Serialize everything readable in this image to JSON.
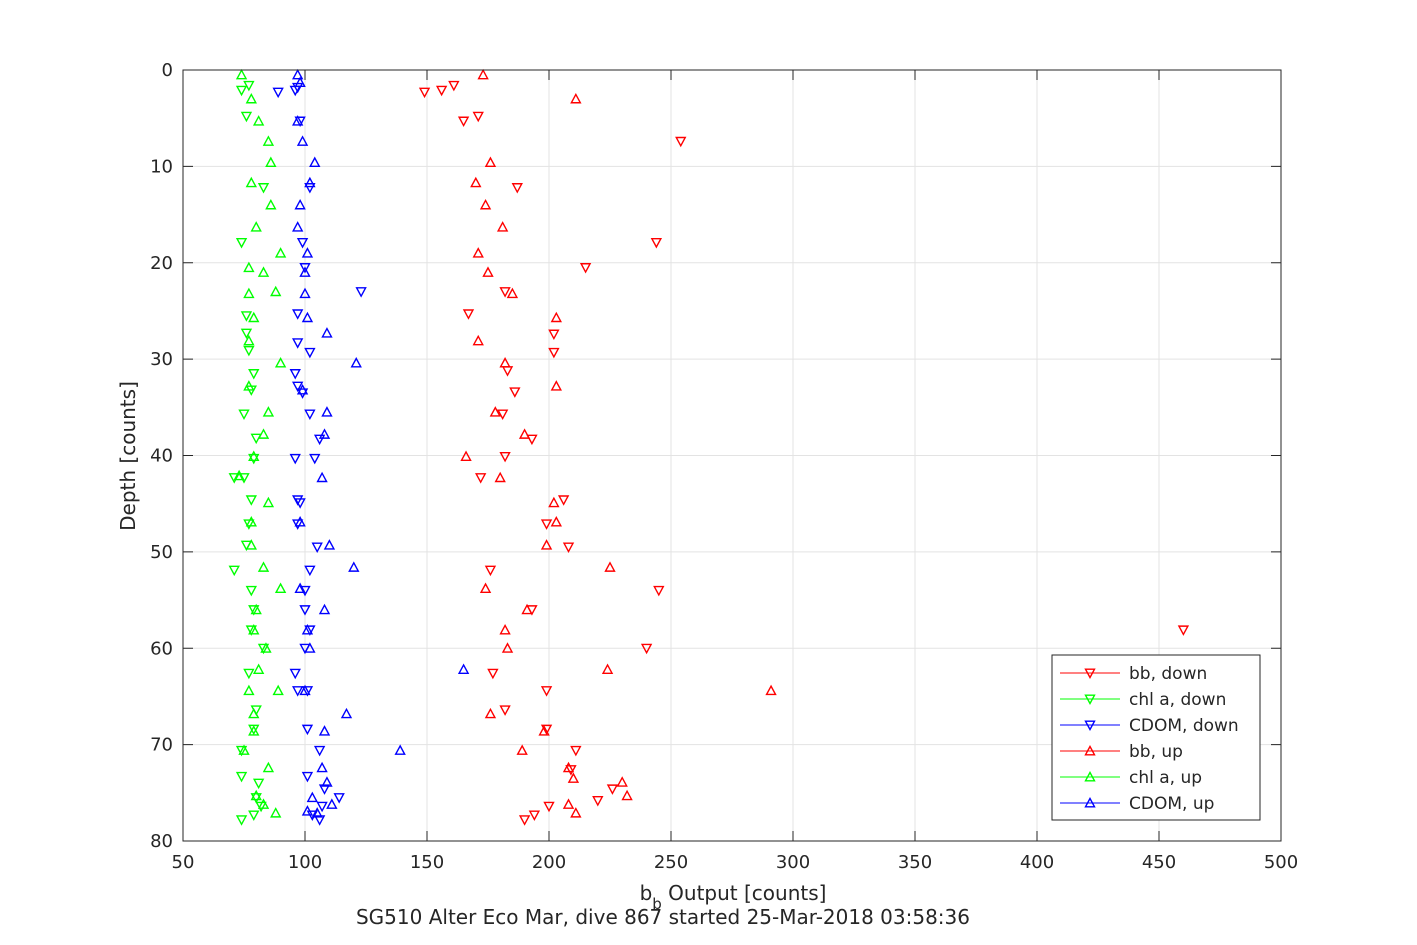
{
  "chart_data": {
    "type": "scatter",
    "title": "",
    "subtitle": "SG510 Alter Eco Mar, dive 867 started 25-Mar-2018 03:58:36",
    "xlabel": {
      "main": "b",
      "sub": "b",
      "rest": " Output [counts]"
    },
    "ylabel": "Depth [counts]",
    "xlim": [
      50,
      500
    ],
    "ylim": [
      0,
      80
    ],
    "y_reversed": true,
    "x_ticks": [
      50,
      100,
      150,
      200,
      250,
      300,
      350,
      400,
      450,
      500
    ],
    "y_ticks": [
      0,
      10,
      20,
      30,
      40,
      50,
      60,
      70,
      80
    ],
    "grid": true,
    "legend_position": "lower-right",
    "series": [
      {
        "name": "bb, down",
        "color": "#ff0000",
        "marker": "triangle-down",
        "points": [
          [
            149,
            2.3
          ],
          [
            156,
            2.1
          ],
          [
            161,
            1.6
          ],
          [
            165,
            5.3
          ],
          [
            171,
            4.8
          ],
          [
            254,
            7.4
          ],
          [
            187,
            12.2
          ],
          [
            244,
            17.9
          ],
          [
            215,
            20.5
          ],
          [
            182,
            23.0
          ],
          [
            167,
            25.3
          ],
          [
            202,
            27.4
          ],
          [
            202,
            29.3
          ],
          [
            183,
            31.2
          ],
          [
            186,
            33.4
          ],
          [
            181,
            35.7
          ],
          [
            193,
            38.3
          ],
          [
            182,
            40.1
          ],
          [
            172,
            42.3
          ],
          [
            206,
            44.6
          ],
          [
            199,
            47.1
          ],
          [
            208,
            49.5
          ],
          [
            176,
            51.9
          ],
          [
            245,
            54.0
          ],
          [
            193,
            56.0
          ],
          [
            460,
            58.1
          ],
          [
            240,
            60.0
          ],
          [
            177,
            62.6
          ],
          [
            199,
            64.4
          ],
          [
            182,
            66.4
          ],
          [
            199,
            68.4
          ],
          [
            211,
            70.6
          ],
          [
            209,
            72.6
          ],
          [
            226,
            74.6
          ],
          [
            220,
            75.8
          ],
          [
            200,
            76.4
          ],
          [
            194,
            77.3
          ],
          [
            190,
            77.8
          ]
        ]
      },
      {
        "name": "chl a, down",
        "color": "#00ff00",
        "marker": "triangle-down",
        "points": [
          [
            77,
            1.6
          ],
          [
            74,
            2.1
          ],
          [
            76,
            4.8
          ],
          [
            83,
            12.2
          ],
          [
            74,
            17.9
          ],
          [
            76,
            25.5
          ],
          [
            76,
            27.3
          ],
          [
            77,
            29.1
          ],
          [
            79,
            31.5
          ],
          [
            78,
            33.2
          ],
          [
            75,
            35.7
          ],
          [
            80,
            38.2
          ],
          [
            79,
            40.3
          ],
          [
            71,
            42.3
          ],
          [
            75,
            42.3
          ],
          [
            78,
            44.6
          ],
          [
            77,
            47.1
          ],
          [
            76,
            49.3
          ],
          [
            71,
            51.9
          ],
          [
            78,
            54.0
          ],
          [
            79,
            56.0
          ],
          [
            78,
            58.1
          ],
          [
            83,
            60.0
          ],
          [
            77,
            62.6
          ],
          [
            80,
            66.4
          ],
          [
            79,
            68.4
          ],
          [
            74,
            70.6
          ],
          [
            74,
            73.3
          ],
          [
            81,
            74.0
          ],
          [
            80,
            75.5
          ],
          [
            82,
            76.4
          ],
          [
            79,
            77.3
          ],
          [
            74,
            77.8
          ]
        ]
      },
      {
        "name": "CDOM, down",
        "color": "#0000ff",
        "marker": "triangle-down",
        "points": [
          [
            89,
            2.3
          ],
          [
            96,
            2.1
          ],
          [
            97,
            1.8
          ],
          [
            98,
            5.3
          ],
          [
            102,
            12.2
          ],
          [
            99,
            17.9
          ],
          [
            100,
            20.5
          ],
          [
            123,
            23.0
          ],
          [
            97,
            25.3
          ],
          [
            97,
            28.3
          ],
          [
            102,
            29.3
          ],
          [
            96,
            31.5
          ],
          [
            97,
            32.8
          ],
          [
            99,
            33.5
          ],
          [
            102,
            35.7
          ],
          [
            106,
            38.3
          ],
          [
            96,
            40.3
          ],
          [
            104,
            40.3
          ],
          [
            97,
            44.6
          ],
          [
            98,
            44.9
          ],
          [
            97,
            47.1
          ],
          [
            105,
            49.5
          ],
          [
            102,
            51.9
          ],
          [
            100,
            54.0
          ],
          [
            100,
            56.0
          ],
          [
            102,
            58.1
          ],
          [
            100,
            60.0
          ],
          [
            96,
            62.6
          ],
          [
            97,
            64.4
          ],
          [
            101,
            64.4
          ],
          [
            101,
            68.4
          ],
          [
            106,
            70.6
          ],
          [
            101,
            73.3
          ],
          [
            108,
            74.6
          ],
          [
            114,
            75.5
          ],
          [
            107,
            76.4
          ],
          [
            103,
            77.3
          ],
          [
            106,
            77.8
          ]
        ]
      },
      {
        "name": "bb, up",
        "color": "#ff0000",
        "marker": "triangle-up",
        "points": [
          [
            173,
            0.5
          ],
          [
            211,
            3.0
          ],
          [
            176,
            9.6
          ],
          [
            170,
            11.7
          ],
          [
            174,
            14.0
          ],
          [
            181,
            16.3
          ],
          [
            171,
            19.0
          ],
          [
            175,
            21.0
          ],
          [
            185,
            23.2
          ],
          [
            203,
            25.7
          ],
          [
            171,
            28.1
          ],
          [
            182,
            30.4
          ],
          [
            203,
            32.8
          ],
          [
            178,
            35.5
          ],
          [
            190,
            37.8
          ],
          [
            166,
            40.1
          ],
          [
            180,
            42.3
          ],
          [
            202,
            44.9
          ],
          [
            203,
            46.9
          ],
          [
            199,
            49.3
          ],
          [
            225,
            51.6
          ],
          [
            174,
            53.8
          ],
          [
            191,
            56.0
          ],
          [
            182,
            58.1
          ],
          [
            183,
            60.0
          ],
          [
            224,
            62.2
          ],
          [
            291,
            64.4
          ],
          [
            176,
            66.8
          ],
          [
            198,
            68.6
          ],
          [
            189,
            70.6
          ],
          [
            208,
            72.4
          ],
          [
            210,
            73.5
          ],
          [
            230,
            73.9
          ],
          [
            232,
            75.3
          ],
          [
            208,
            76.2
          ],
          [
            211,
            77.1
          ]
        ]
      },
      {
        "name": "chl a, up",
        "color": "#00ff00",
        "marker": "triangle-up",
        "points": [
          [
            74,
            0.5
          ],
          [
            78,
            3.0
          ],
          [
            81,
            5.3
          ],
          [
            85,
            7.4
          ],
          [
            86,
            9.6
          ],
          [
            78,
            11.7
          ],
          [
            86,
            14.0
          ],
          [
            80,
            16.3
          ],
          [
            90,
            19.0
          ],
          [
            77,
            20.5
          ],
          [
            83,
            21.0
          ],
          [
            88,
            23.0
          ],
          [
            77,
            23.2
          ],
          [
            79,
            25.7
          ],
          [
            77,
            28.1
          ],
          [
            90,
            30.4
          ],
          [
            77,
            32.8
          ],
          [
            85,
            35.5
          ],
          [
            83,
            37.8
          ],
          [
            79,
            40.1
          ],
          [
            73,
            42.1
          ],
          [
            85,
            44.9
          ],
          [
            78,
            46.9
          ],
          [
            78,
            49.3
          ],
          [
            83,
            51.6
          ],
          [
            90,
            53.8
          ],
          [
            80,
            56.0
          ],
          [
            79,
            58.1
          ],
          [
            84,
            60.0
          ],
          [
            81,
            62.2
          ],
          [
            77,
            64.4
          ],
          [
            89,
            64.4
          ],
          [
            79,
            66.8
          ],
          [
            79,
            68.6
          ],
          [
            75,
            70.6
          ],
          [
            85,
            72.4
          ],
          [
            80,
            75.3
          ],
          [
            83,
            76.2
          ],
          [
            88,
            77.1
          ]
        ]
      },
      {
        "name": "CDOM, up",
        "color": "#0000ff",
        "marker": "triangle-up",
        "points": [
          [
            97,
            0.5
          ],
          [
            98,
            1.3
          ],
          [
            97,
            5.3
          ],
          [
            99,
            7.4
          ],
          [
            104,
            9.6
          ],
          [
            102,
            11.7
          ],
          [
            98,
            14.0
          ],
          [
            97,
            16.3
          ],
          [
            101,
            19.0
          ],
          [
            100,
            21.0
          ],
          [
            100,
            23.2
          ],
          [
            101,
            25.7
          ],
          [
            109,
            27.3
          ],
          [
            121,
            30.4
          ],
          [
            99,
            33.2
          ],
          [
            109,
            35.5
          ],
          [
            108,
            37.8
          ],
          [
            107,
            42.3
          ],
          [
            98,
            46.9
          ],
          [
            110,
            49.3
          ],
          [
            120,
            51.6
          ],
          [
            98,
            53.8
          ],
          [
            108,
            56.0
          ],
          [
            101,
            58.1
          ],
          [
            102,
            60.0
          ],
          [
            165,
            62.2
          ],
          [
            100,
            64.4
          ],
          [
            117,
            66.8
          ],
          [
            108,
            68.6
          ],
          [
            139,
            70.6
          ],
          [
            107,
            72.4
          ],
          [
            109,
            73.9
          ],
          [
            103,
            75.5
          ],
          [
            111,
            76.2
          ],
          [
            101,
            76.9
          ],
          [
            105,
            77.1
          ]
        ]
      }
    ]
  }
}
